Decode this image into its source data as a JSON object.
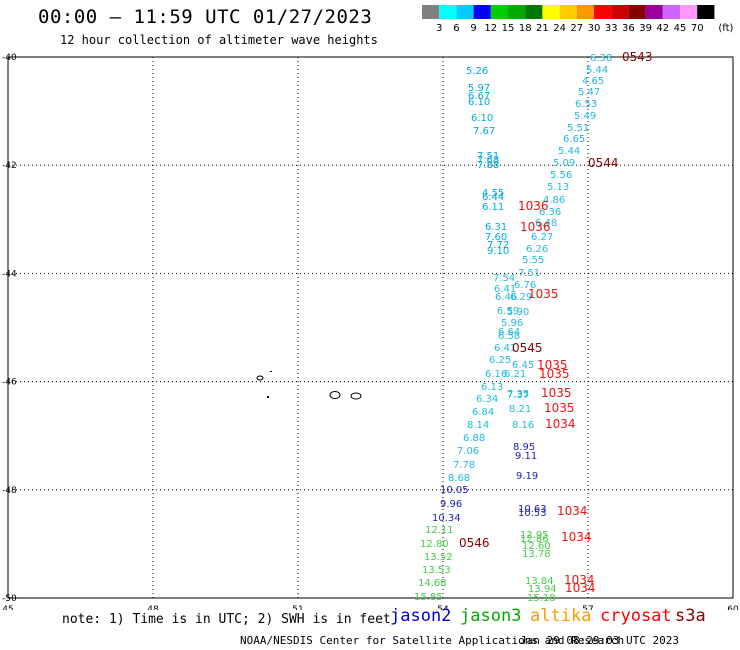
{
  "header": {
    "title": "00:00 – 11:59 UTC 01/27/2023",
    "subtitle": "12 hour collection of altimeter wave heights"
  },
  "colorbar": {
    "unit": "(ft)",
    "ticks": [
      "3",
      "6",
      "9",
      "12",
      "15",
      "18",
      "21",
      "24",
      "27",
      "30",
      "33",
      "36",
      "39",
      "42",
      "45",
      "70"
    ],
    "colors": [
      "#808080",
      "#00ffff",
      "#00ccff",
      "#0000ff",
      "#00cc00",
      "#00aa00",
      "#007700",
      "#ffff00",
      "#ffcc00",
      "#ff9900",
      "#ff0000",
      "#cc0000",
      "#880000",
      "#990099",
      "#cc66ff",
      "#ff99ff",
      "#000000"
    ]
  },
  "map": {
    "x_ticks": [
      "45",
      "48",
      "51",
      "54",
      "57",
      "60"
    ],
    "y_ticks": [
      "-40",
      "-42",
      "-44",
      "-46",
      "-48",
      "-50"
    ]
  },
  "labels": {
    "blue_track": [
      "5.26",
      "5.97",
      "6.67",
      "6.10",
      "6.10",
      "7.67",
      "7.51",
      "7.68",
      "7.88",
      "4.55",
      "6.44",
      "6.11",
      "6.31",
      "7.60",
      "7.72",
      "9.10"
    ],
    "cyan_track": [
      "6.38",
      "5.44",
      "4.65",
      "5.47",
      "6.53",
      "5.49",
      "5.51",
      "6.65",
      "5.44",
      "5.09",
      "5.56",
      "5.13",
      "4.86",
      "6.36",
      "6.48",
      "6.27",
      "6.26",
      "5.55",
      "7.54",
      "7.51",
      "6.76",
      "6.41",
      "6.29",
      "6.46",
      "5.90",
      "6.59",
      "5.96",
      "6.64",
      "6.58",
      "6.41",
      "6.25",
      "6.45",
      "6.16",
      "6.21",
      "6.13",
      "7.35",
      "6.34",
      "7.37",
      "6.84",
      "8.21",
      "8.14",
      "8.16",
      "6.88",
      "7.06",
      "7.78",
      "8.68"
    ],
    "navy_track": [
      "8.95",
      "9.11",
      "9.19",
      "10.05",
      "9.96",
      "10.34",
      "10.63",
      "10.53"
    ],
    "green_track": [
      "12.11",
      "12.80",
      "13.52",
      "13.53",
      "14.68",
      "15.85",
      "12.95",
      "12.86",
      "12.60",
      "13.78",
      "13.84",
      "13.94",
      "15.18"
    ],
    "red_track": [
      "1036",
      "1036",
      "1035",
      "1035",
      "1035",
      "1035",
      "1035",
      "1034",
      "1034",
      "1034",
      "1034",
      "1034"
    ],
    "darkred_track": [
      "0543",
      "0544",
      "0545",
      "0546"
    ]
  },
  "footer": {
    "note": "note:  1) Time is in UTC; 2) SWH is in feet",
    "legend": [
      {
        "name": "jason2",
        "color": "#0000cc"
      },
      {
        "name": "jason3",
        "color": "#00aa00"
      },
      {
        "name": "altika",
        "color": "#ff9900"
      },
      {
        "name": "cryosat",
        "color": "#ff0000"
      },
      {
        "name": "s3a",
        "color": "#880000"
      }
    ],
    "credit": "NOAA/NESDIS Center for Satellite Applications and Research",
    "timestamp": "Jan 29 08:29:03 UTC 2023"
  }
}
